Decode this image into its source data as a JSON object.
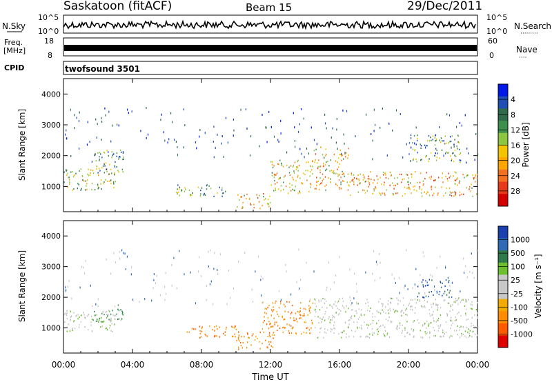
{
  "header": {
    "station": "Saskatoon (fitACF)",
    "beam": "Beam 15",
    "date": "29/Dec/2011"
  },
  "noise_panel": {
    "left_label": "N.Sky",
    "left_ticks": [
      "10^5",
      "10^0"
    ],
    "right_ticks": [
      "10^5",
      "10^0"
    ],
    "right_label": "N.Search",
    "right_label_dots": "·········"
  },
  "freq_panel": {
    "left_label_1": "Freq.",
    "left_label_2": "[MHz]",
    "left_ticks": [
      "18",
      "8"
    ],
    "right_ticks": [
      "60",
      "0"
    ],
    "right_label": "Nave",
    "right_label_dots": "····"
  },
  "cpid_panel": {
    "label": "CPID",
    "program": "twofsound 3501"
  },
  "chart_data": [
    {
      "type": "heatmap",
      "title": "Power",
      "xlabel": "",
      "ylabel": "Slant Range [km]",
      "xlim": [
        "00:00",
        "00:00"
      ],
      "ylim": [
        180,
        4500
      ],
      "yticks": [
        1000,
        2000,
        3000,
        4000
      ],
      "xticks": [
        "00:00",
        "04:00",
        "08:00",
        "12:00",
        "16:00",
        "20:00",
        "00:00"
      ],
      "colorbar": {
        "label": "Power [dB]",
        "ticks": [
          "4",
          "8",
          "12",
          "16",
          "20",
          "24",
          "28"
        ],
        "colors": [
          "#0018e8",
          "#1f4fb5",
          "#2f6b4a",
          "#3d8f4c",
          "#8cc63f",
          "#f2c500",
          "#ffa500",
          "#f37021",
          "#e53b1b",
          "#d40000"
        ]
      },
      "scatter_regions": [
        {
          "t0": 0.0,
          "t1": 3.0,
          "r0": 900,
          "r1": 1600,
          "level": 0.45
        },
        {
          "t0": 1.5,
          "t1": 3.5,
          "r0": 1400,
          "r1": 2200,
          "level": 0.3
        },
        {
          "t0": 6.5,
          "t1": 9.5,
          "r0": 700,
          "r1": 1100,
          "level": 0.35
        },
        {
          "t0": 10.0,
          "t1": 12.0,
          "r0": 300,
          "r1": 800,
          "level": 0.6
        },
        {
          "t0": 12.0,
          "t1": 14.5,
          "r0": 800,
          "r1": 1900,
          "level": 0.55
        },
        {
          "t0": 14.5,
          "t1": 16.5,
          "r0": 900,
          "r1": 2300,
          "level": 0.6
        },
        {
          "t0": 16.5,
          "t1": 24.0,
          "r0": 700,
          "r1": 1500,
          "level": 0.65
        },
        {
          "t0": 20.0,
          "t1": 23.0,
          "r0": 1800,
          "r1": 2700,
          "level": 0.3
        }
      ]
    },
    {
      "type": "heatmap",
      "title": "Velocity",
      "xlabel": "Time UT",
      "ylabel": "Slant Range [km]",
      "xlim": [
        "00:00",
        "00:00"
      ],
      "ylim": [
        180,
        4500
      ],
      "yticks": [
        1000,
        2000,
        3000,
        4000
      ],
      "xticks": [
        "00:00",
        "04:00",
        "08:00",
        "12:00",
        "16:00",
        "20:00",
        "00:00"
      ],
      "colorbar": {
        "label": "Velocity [m s⁻¹]",
        "ticks": [
          "1000",
          "500",
          "100",
          "25",
          "-25",
          "-100",
          "-500",
          "-1000"
        ],
        "colors": [
          "#1a3fb0",
          "#2f6bb5",
          "#2f7a4a",
          "#6dbf2f",
          "#c8c8c8",
          "#c8c8c8",
          "#f2a900",
          "#ff8c00",
          "#ff5a00",
          "#e00000"
        ]
      },
      "scatter_regions": [
        {
          "t0": 0.0,
          "t1": 3.0,
          "r0": 900,
          "r1": 1600,
          "vel": "gray"
        },
        {
          "t0": 1.5,
          "t1": 3.5,
          "r0": 1200,
          "r1": 1800,
          "vel": "green"
        },
        {
          "t0": 7.0,
          "t1": 10.0,
          "r0": 700,
          "r1": 1100,
          "vel": "orange"
        },
        {
          "t0": 10.0,
          "t1": 12.2,
          "r0": 300,
          "r1": 900,
          "vel": "orange"
        },
        {
          "t0": 11.5,
          "t1": 14.5,
          "r0": 800,
          "r1": 1900,
          "vel": "orange"
        },
        {
          "t0": 14.5,
          "t1": 24.0,
          "r0": 700,
          "r1": 2000,
          "vel": "gray"
        },
        {
          "t0": 20.5,
          "t1": 22.5,
          "r0": 2000,
          "r1": 2600,
          "vel": "blue"
        }
      ]
    }
  ]
}
